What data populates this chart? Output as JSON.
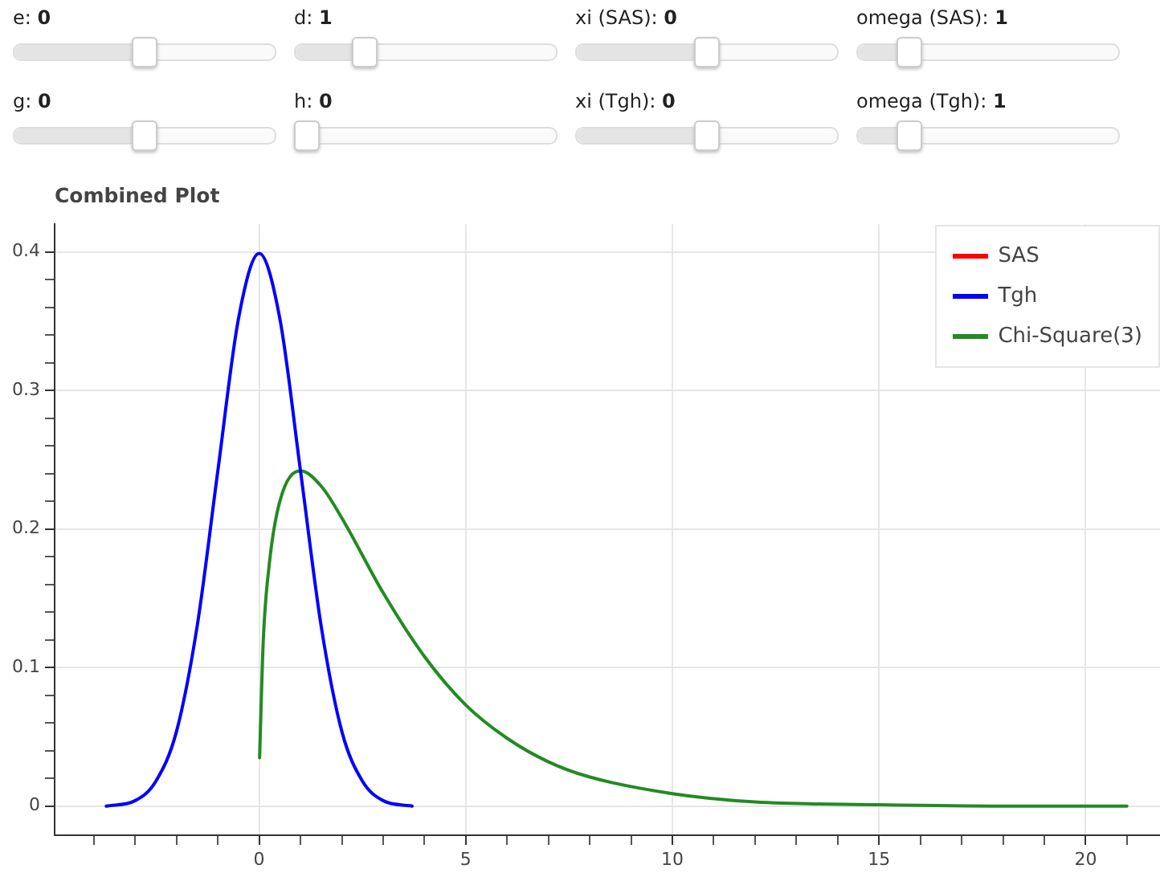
{
  "chart_data": {
    "type": "line",
    "title": "Combined Plot",
    "annotations": [
      "e: 0",
      "d: 1",
      "xi (SAS): 0",
      "omega (SAS): 1",
      "g: 0",
      "h: 0",
      "xi (Tgh): 0",
      "omega (Tgh): 1"
    ],
    "series": [
      {
        "name": "SAS",
        "color": "#ff0000"
      },
      {
        "name": "Tgh",
        "color": "#0000ff",
        "x": [
          -3.7,
          -3,
          -2.5,
          -2,
          -1.5,
          -1,
          -0.5,
          0,
          0.5,
          1,
          1.5,
          2,
          2.5,
          3,
          3.7
        ],
        "values": [
          0.0,
          0.004,
          0.018,
          0.054,
          0.13,
          0.242,
          0.352,
          0.399,
          0.352,
          0.242,
          0.13,
          0.054,
          0.018,
          0.004,
          0.0
        ]
      },
      {
        "name": "Chi-Square(3)",
        "color": "#228b22",
        "x": [
          0.01,
          0.1,
          0.25,
          0.5,
          1,
          1.5,
          2,
          3,
          4,
          5,
          6,
          7,
          8,
          10,
          12,
          15,
          18,
          21
        ],
        "values": [
          0.035,
          0.12,
          0.176,
          0.22,
          0.242,
          0.231,
          0.208,
          0.154,
          0.108,
          0.073,
          0.049,
          0.032,
          0.021,
          0.009,
          0.003,
          0.001,
          0.0,
          0.0
        ]
      }
    ],
    "xlim": [
      -4.95,
      21.8
    ],
    "xticks": [
      {
        "value": -4,
        "label": null
      },
      {
        "value": -3,
        "label": null
      },
      {
        "value": -2,
        "label": null
      },
      {
        "value": -1,
        "label": null
      },
      0,
      {
        "value": 1,
        "label": null
      },
      {
        "value": 2,
        "label": null
      },
      {
        "value": 3,
        "label": null
      },
      {
        "value": 4,
        "label": null
      },
      5,
      {
        "value": 6,
        "label": null
      },
      {
        "value": 7,
        "label": null
      },
      {
        "value": 8,
        "label": null
      },
      {
        "value": 9,
        "label": null
      },
      10,
      {
        "value": 11,
        "label": null
      },
      {
        "value": 12,
        "label": null
      },
      {
        "value": 13,
        "label": null
      },
      {
        "value": 14,
        "label": null
      },
      15,
      {
        "value": 16,
        "label": null
      },
      {
        "value": 17,
        "label": null
      },
      {
        "value": 18,
        "label": null
      },
      {
        "value": 19,
        "label": null
      },
      20,
      {
        "value": 21,
        "label": null
      }
    ],
    "ylim": [
      -0.021,
      0.42
    ],
    "yticks": [
      0,
      {
        "value": 0.02,
        "label": null
      },
      {
        "value": 0.04,
        "label": null
      },
      {
        "value": 0.06,
        "label": null
      },
      {
        "value": 0.08,
        "label": null
      },
      0.1,
      {
        "value": 0.12,
        "label": null
      },
      {
        "value": 0.14,
        "label": null
      },
      {
        "value": 0.16,
        "label": null
      },
      {
        "value": 0.18,
        "label": null
      },
      0.2,
      {
        "value": 0.22,
        "label": null
      },
      {
        "value": 0.24,
        "label": null
      },
      {
        "value": 0.26,
        "label": null
      },
      {
        "value": 0.28,
        "label": null
      },
      0.3,
      {
        "value": 0.32,
        "label": null
      },
      {
        "value": 0.34,
        "label": null
      },
      {
        "value": 0.36,
        "label": null
      },
      {
        "value": 0.38,
        "label": null
      },
      0.4
    ],
    "grid": true,
    "legend": "top right",
    "marker": "none",
    "line_style": "solid"
  }
}
